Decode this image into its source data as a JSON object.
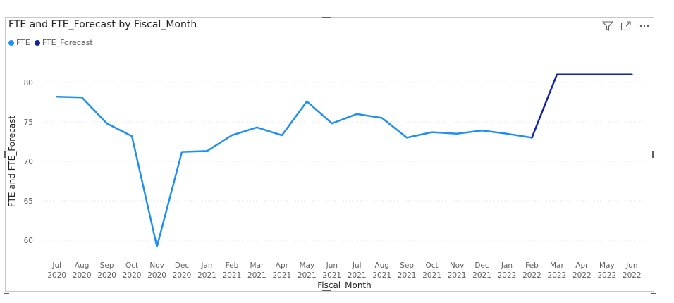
{
  "visual": {
    "title": "FTE and FTE_Forecast by Fiscal_Month",
    "icons": [
      "filter-icon",
      "focus-mode-icon",
      "more-options-icon"
    ]
  },
  "legend": {
    "items": [
      {
        "label": "FTE",
        "color": "#1f8ff0"
      },
      {
        "label": "FTE_Forecast",
        "color": "#12239e"
      }
    ]
  },
  "chart_data": {
    "type": "line",
    "title": "FTE and FTE_Forecast by Fiscal_Month",
    "xlabel": "Fiscal_Month",
    "ylabel": "FTE and FTE_Forecast",
    "categories": [
      [
        "Jul",
        "2020"
      ],
      [
        "Aug",
        "2020"
      ],
      [
        "Sep",
        "2020"
      ],
      [
        "Oct",
        "2020"
      ],
      [
        "Nov",
        "2020"
      ],
      [
        "Dec",
        "2020"
      ],
      [
        "Jan",
        "2021"
      ],
      [
        "Feb",
        "2021"
      ],
      [
        "Mar",
        "2021"
      ],
      [
        "Apr",
        "2021"
      ],
      [
        "May",
        "2021"
      ],
      [
        "Jun",
        "2021"
      ],
      [
        "Jul",
        "2021"
      ],
      [
        "Aug",
        "2021"
      ],
      [
        "Sep",
        "2021"
      ],
      [
        "Oct",
        "2021"
      ],
      [
        "Nov",
        "2021"
      ],
      [
        "Dec",
        "2021"
      ],
      [
        "Jan",
        "2022"
      ],
      [
        "Feb",
        "2022"
      ],
      [
        "Mar",
        "2022"
      ],
      [
        "Apr",
        "2022"
      ],
      [
        "May",
        "2022"
      ],
      [
        "Jun",
        "2022"
      ]
    ],
    "ylim": [
      57.5,
      82.5
    ],
    "yticks": [
      60,
      65,
      70,
      75,
      80
    ],
    "grid": true,
    "legend_position": "top-left",
    "series": [
      {
        "name": "FTE",
        "color": "#1f8ff0",
        "values": [
          78.2,
          78.1,
          74.8,
          73.2,
          59.2,
          71.2,
          71.3,
          73.3,
          74.3,
          73.3,
          77.6,
          74.8,
          76.0,
          75.5,
          73.0,
          73.7,
          73.5,
          73.9,
          73.5,
          73.0,
          null,
          null,
          null,
          null
        ]
      },
      {
        "name": "FTE_Forecast",
        "color": "#12239e",
        "values": [
          null,
          null,
          null,
          null,
          null,
          null,
          null,
          null,
          null,
          null,
          null,
          null,
          null,
          null,
          null,
          null,
          null,
          null,
          null,
          73.0,
          81.0,
          81.0,
          81.0,
          81.0
        ]
      }
    ]
  }
}
